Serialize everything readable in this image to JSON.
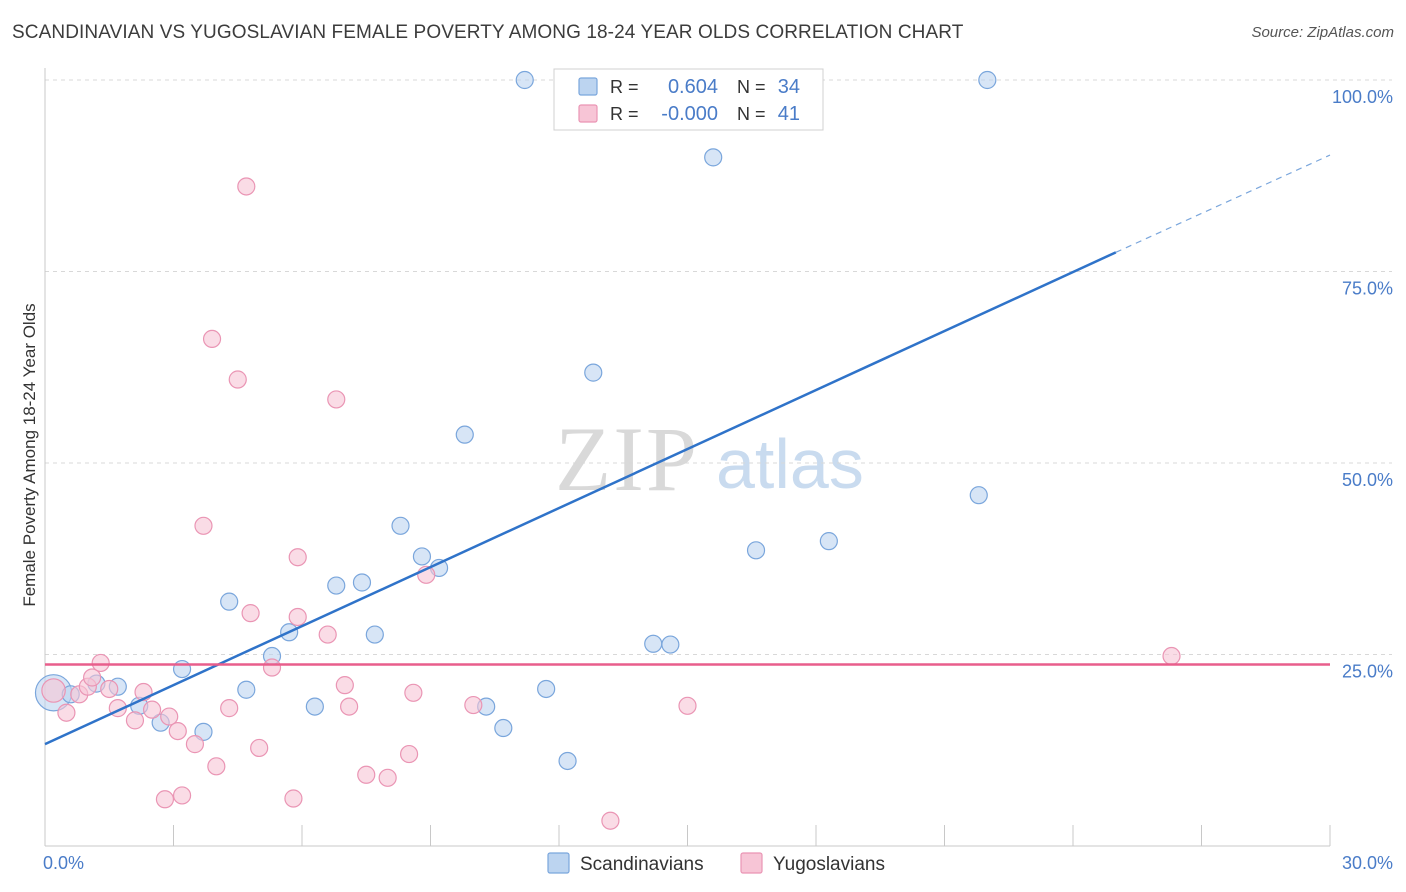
{
  "header": {
    "title": "SCANDINAVIAN VS YUGOSLAVIAN FEMALE POVERTY AMONG 18-24 YEAR OLDS CORRELATION CHART",
    "source": "Source: ZipAtlas.com"
  },
  "watermark": {
    "zip": "ZIP",
    "atlas": "atlas"
  },
  "colors": {
    "blue_fill": "#bcd4f0",
    "blue_stroke": "#7aa6dc",
    "blue_line": "#2f73c9",
    "pink_fill": "#f7c5d6",
    "pink_stroke": "#ea95b4",
    "pink_line": "#e85e8c",
    "tick_label": "#4a7cc8",
    "grid": "#d8d8d8"
  },
  "chart_data": {
    "type": "scatter",
    "title": "SCANDINAVIAN VS YUGOSLAVIAN FEMALE POVERTY AMONG 18-24 YEAR OLDS CORRELATION CHART",
    "ylabel": "Female Poverty Among 18-24 Year Olds",
    "xlabel": "",
    "xlim": [
      0,
      30
    ],
    "ylim": [
      0,
      100
    ],
    "x_tick_labels": [
      "0.0%",
      "30.0%"
    ],
    "y_tick_labels": [
      "100.0%",
      "75.0%",
      "50.0%",
      "25.0%"
    ],
    "y_ticks": [
      100,
      75,
      50,
      25
    ],
    "grid": true,
    "legend_position": "top-center",
    "stats": [
      {
        "r_label": "R =",
        "r": "0.604",
        "n_label": "N =",
        "n": "34"
      },
      {
        "r_label": "R =",
        "r": "-0.000",
        "n_label": "N =",
        "n": "41"
      }
    ],
    "series": [
      {
        "name": "Scandinavians",
        "color": "#7aa6dc",
        "points": [
          [
            0.2,
            20.0,
            22
          ],
          [
            0.6,
            19.8,
            10
          ],
          [
            1.2,
            21.2,
            10
          ],
          [
            1.7,
            20.8,
            10
          ],
          [
            2.2,
            18.3,
            10
          ],
          [
            2.7,
            16.1,
            10
          ],
          [
            3.2,
            23.1,
            10
          ],
          [
            3.7,
            14.9,
            10
          ],
          [
            4.3,
            31.9,
            10
          ],
          [
            4.7,
            20.4,
            10
          ],
          [
            5.3,
            24.8,
            10
          ],
          [
            5.7,
            27.9,
            10
          ],
          [
            6.3,
            18.2,
            10
          ],
          [
            6.8,
            34.0,
            10
          ],
          [
            7.4,
            34.4,
            10
          ],
          [
            7.7,
            27.6,
            10
          ],
          [
            8.3,
            41.8,
            10
          ],
          [
            8.8,
            37.8,
            10
          ],
          [
            9.2,
            36.3,
            10
          ],
          [
            9.8,
            53.7,
            10
          ],
          [
            10.3,
            18.2,
            10
          ],
          [
            10.7,
            15.4,
            10
          ],
          [
            11.2,
            100.0,
            10
          ],
          [
            11.7,
            20.5,
            10
          ],
          [
            12.2,
            11.1,
            10
          ],
          [
            12.8,
            61.8,
            10
          ],
          [
            14.2,
            26.4,
            10
          ],
          [
            14.6,
            26.3,
            10
          ],
          [
            15.6,
            89.9,
            10
          ],
          [
            16.6,
            38.6,
            10
          ],
          [
            17.7,
            100.0,
            10
          ],
          [
            18.3,
            39.8,
            10
          ],
          [
            21.8,
            45.8,
            10
          ],
          [
            22.0,
            100.0,
            10
          ]
        ]
      },
      {
        "name": "Yugoslavians",
        "color": "#ea95b4",
        "points": [
          [
            0.2,
            20.3,
            14
          ],
          [
            0.5,
            17.4,
            10
          ],
          [
            0.8,
            19.8,
            10
          ],
          [
            1.0,
            20.8,
            10
          ],
          [
            1.1,
            22.0,
            10
          ],
          [
            1.3,
            23.9,
            10
          ],
          [
            1.5,
            20.5,
            10
          ],
          [
            1.7,
            18.0,
            10
          ],
          [
            2.1,
            16.4,
            10
          ],
          [
            2.3,
            20.1,
            10
          ],
          [
            2.5,
            17.8,
            10
          ],
          [
            2.8,
            6.1,
            10
          ],
          [
            2.9,
            16.9,
            10
          ],
          [
            3.1,
            15.0,
            10
          ],
          [
            3.2,
            6.6,
            10
          ],
          [
            3.5,
            13.3,
            10
          ],
          [
            3.7,
            41.8,
            10
          ],
          [
            3.9,
            66.2,
            10
          ],
          [
            4.0,
            10.4,
            10
          ],
          [
            4.3,
            18.0,
            10
          ],
          [
            4.5,
            60.9,
            10
          ],
          [
            4.7,
            86.1,
            10
          ],
          [
            4.8,
            30.4,
            10
          ],
          [
            5.0,
            12.8,
            10
          ],
          [
            5.3,
            23.3,
            10
          ],
          [
            5.8,
            6.2,
            10
          ],
          [
            5.9,
            37.7,
            10
          ],
          [
            5.9,
            29.9,
            10
          ],
          [
            6.6,
            27.6,
            10
          ],
          [
            6.8,
            58.3,
            10
          ],
          [
            7.0,
            21.0,
            10
          ],
          [
            7.1,
            18.2,
            10
          ],
          [
            7.5,
            9.3,
            10
          ],
          [
            8.0,
            8.9,
            10
          ],
          [
            8.5,
            12.0,
            10
          ],
          [
            8.6,
            20.0,
            10
          ],
          [
            8.9,
            35.4,
            10
          ],
          [
            10.0,
            18.4,
            10
          ],
          [
            13.2,
            3.3,
            10
          ],
          [
            15.0,
            18.3,
            10
          ],
          [
            26.3,
            24.8,
            10
          ]
        ]
      }
    ],
    "trend_lines": [
      {
        "series": "Scandinavians",
        "x0": 0.0,
        "y0": 13.3,
        "x1": 25.0,
        "y1": 77.5,
        "x_dash_end": 30.0,
        "y_dash_end": 90.2
      },
      {
        "series": "Yugoslavians",
        "x0": 0.0,
        "y0": 23.7,
        "x1": 30.0,
        "y1": 23.7
      }
    ]
  }
}
